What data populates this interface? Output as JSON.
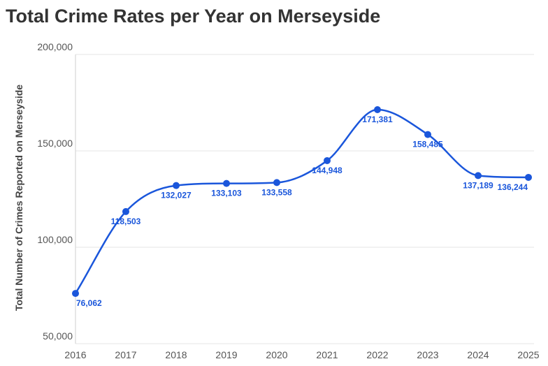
{
  "chart_data": {
    "type": "line",
    "title": "Total Crime Rates per Year on Merseyside",
    "xlabel": "",
    "ylabel": "Total Number of Crimes Reported on Merseyside",
    "categories": [
      "2016",
      "2017",
      "2018",
      "2019",
      "2020",
      "2021",
      "2022",
      "2023",
      "2024",
      "2025"
    ],
    "values": [
      76062,
      118503,
      132027,
      133103,
      133558,
      144948,
      171381,
      158485,
      137189,
      136244
    ],
    "data_labels": [
      "76,062",
      "118,503",
      "132,027",
      "133,103",
      "133,558",
      "144,948",
      "171,381",
      "158,485",
      "137,189",
      "136,244"
    ],
    "ylim": [
      50000,
      200000
    ],
    "yticks": [
      50000,
      100000,
      150000,
      200000
    ],
    "ytick_labels": [
      "50,000",
      "100,000",
      "150,000",
      "200,000"
    ],
    "grid": true,
    "legend": "none",
    "line_color": "#1a56db"
  }
}
